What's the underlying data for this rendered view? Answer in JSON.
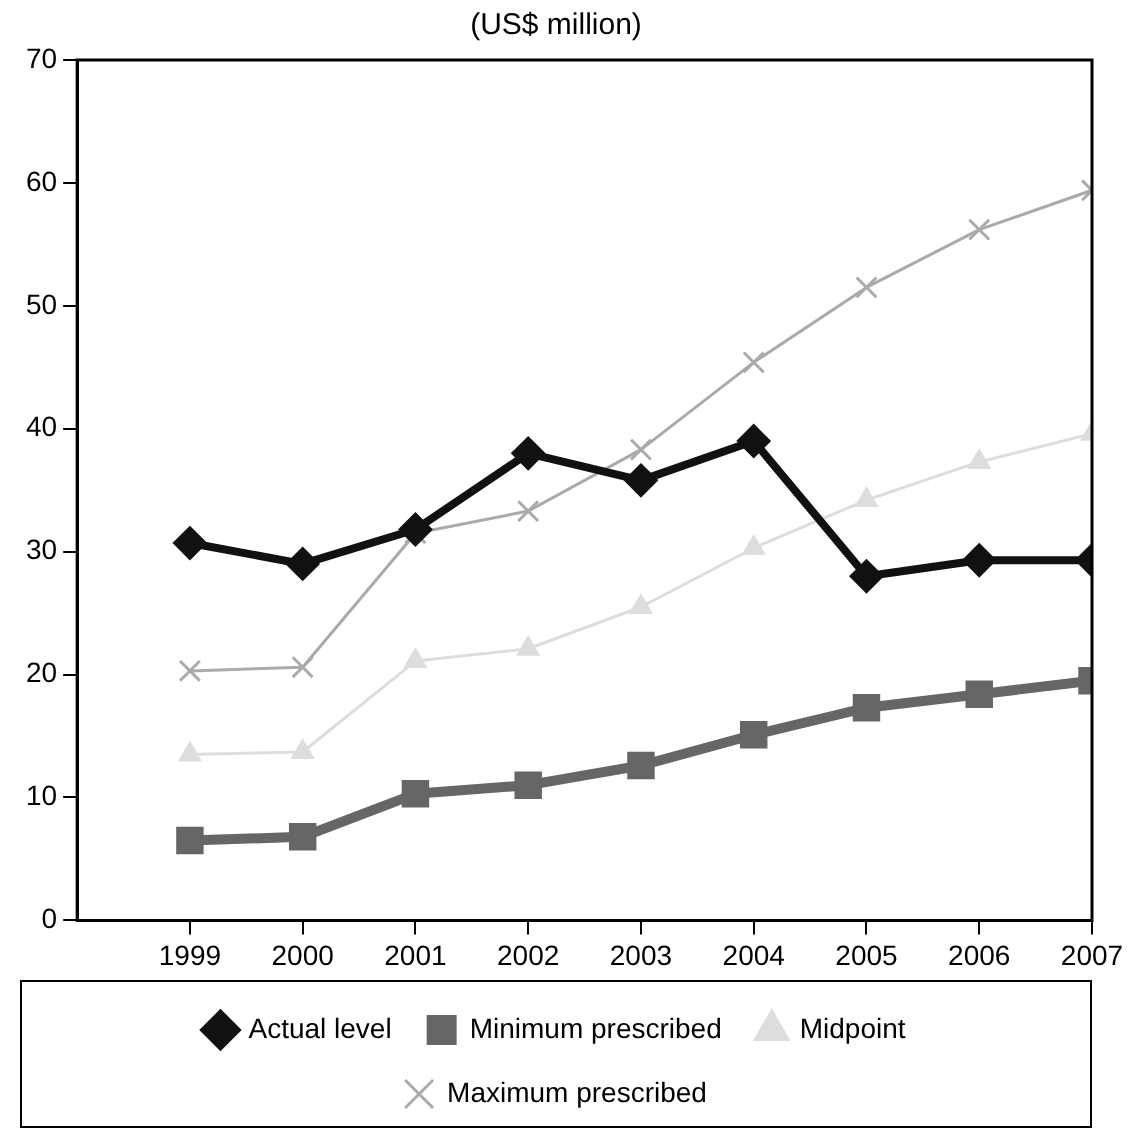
{
  "chart_data": {
    "type": "line",
    "title": "(US$ million)",
    "x": [
      1999,
      2000,
      2001,
      2002,
      2003,
      2004,
      2005,
      2006,
      2007
    ],
    "xlim": [
      1998,
      2007
    ],
    "xticks": [
      1999,
      2000,
      2001,
      2002,
      2003,
      2004,
      2005,
      2006,
      2007
    ],
    "ylim": [
      0,
      70
    ],
    "yticks": [
      0,
      10,
      20,
      30,
      40,
      50,
      60,
      70
    ],
    "grid": false,
    "legend": "bottom",
    "series": [
      {
        "name": "Actual level",
        "color": "#111111",
        "marker": "diamond",
        "values": [
          30.7,
          29.0,
          31.8,
          38.0,
          35.8,
          39.0,
          28.0,
          29.3,
          29.3
        ]
      },
      {
        "name": "Minimum prescribed",
        "color": "#666666",
        "marker": "square",
        "values": [
          6.5,
          6.8,
          10.3,
          11.0,
          12.6,
          15.1,
          17.3,
          18.4,
          19.5
        ]
      },
      {
        "name": "Midpoint",
        "color": "#dddddd",
        "marker": "triangle",
        "values": [
          13.5,
          13.7,
          21.1,
          22.1,
          25.5,
          30.3,
          34.2,
          37.3,
          39.6
        ]
      },
      {
        "name": "Maximum prescribed",
        "color": "#aaaaaa",
        "marker": "cross",
        "values": [
          20.3,
          20.6,
          31.5,
          33.3,
          38.3,
          45.4,
          51.5,
          56.2,
          59.4
        ]
      }
    ]
  }
}
